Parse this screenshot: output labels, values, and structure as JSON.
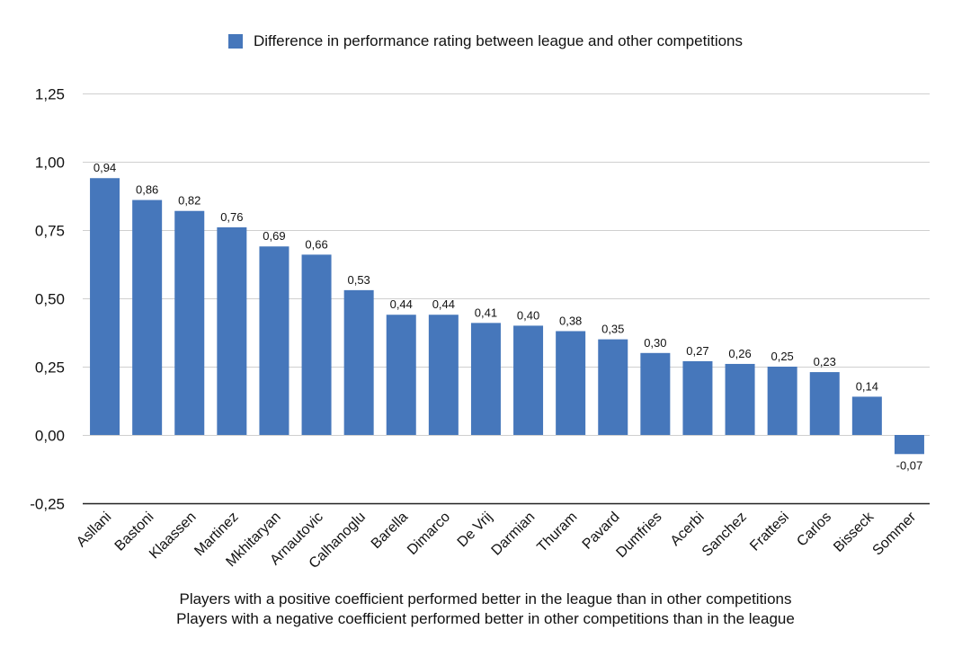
{
  "chart_data": {
    "type": "bar",
    "legend": {
      "entries": [
        "Difference in performance rating between league and other competitions"
      ],
      "position": "top-center"
    },
    "categories": [
      "Asllani",
      "Bastoni",
      "Klaassen",
      "Martinez",
      "Mkhitaryan",
      "Arnautovic",
      "Calhanoglu",
      "Barella",
      "Dimarco",
      "De Vrij",
      "Darmian",
      "Thuram",
      "Pavard",
      "Dumfries",
      "Acerbi",
      "Sanchez",
      "Frattesi",
      "Carlos",
      "Bisseck",
      "Sommer"
    ],
    "series": [
      {
        "name": "Difference in performance rating between league and other competitions",
        "values": [
          0.94,
          0.86,
          0.82,
          0.76,
          0.69,
          0.66,
          0.53,
          0.44,
          0.44,
          0.41,
          0.4,
          0.38,
          0.35,
          0.3,
          0.27,
          0.26,
          0.25,
          0.23,
          0.14,
          -0.07
        ],
        "labels": [
          "0,94",
          "0,86",
          "0,82",
          "0,76",
          "0,69",
          "0,66",
          "0,53",
          "0,44",
          "0,44",
          "0,41",
          "0,40",
          "0,38",
          "0,35",
          "0,30",
          "0,27",
          "0,26",
          "0,25",
          "0,23",
          "0,14",
          "-0,07"
        ],
        "color": "#4677BB"
      }
    ],
    "yticks": [
      -0.25,
      0,
      0.25,
      0.5,
      0.75,
      1.0,
      1.25
    ],
    "ytick_labels": [
      "-0,25",
      "0,00",
      "0,25",
      "0,50",
      "0,75",
      "1,00",
      "1,25"
    ],
    "ylim": [
      -0.25,
      1.25
    ],
    "grid": true,
    "xlabel": "",
    "ylabel": "",
    "notes": [
      "Players with a positive coefficient performed better in the league than in other competitions",
      "Players with a negative coefficient performed better in other competitions than in the league"
    ]
  }
}
